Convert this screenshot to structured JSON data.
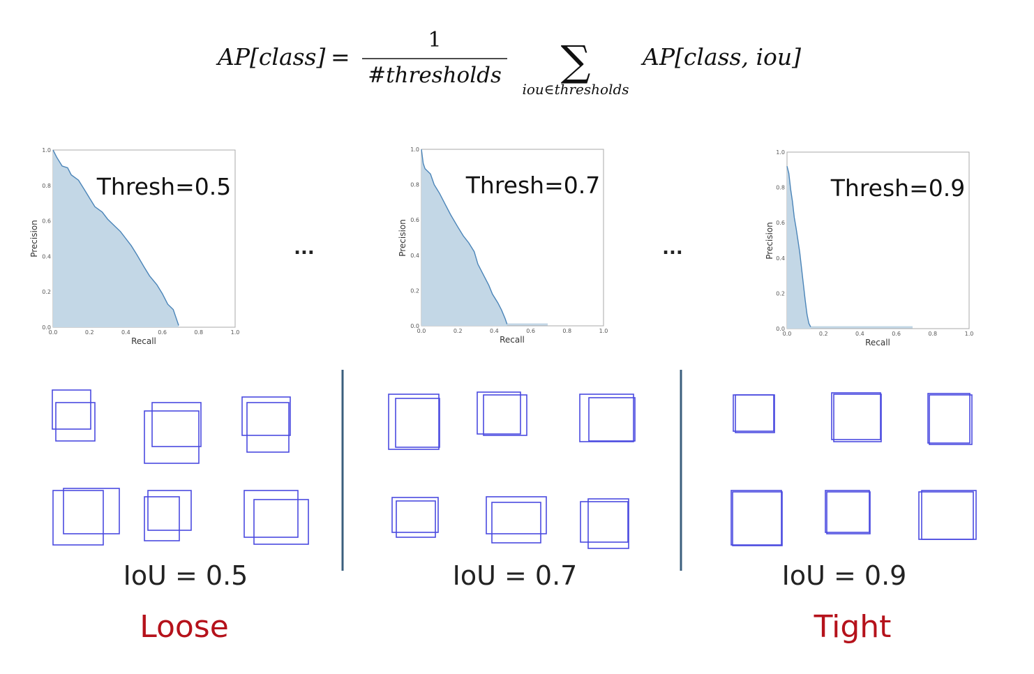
{
  "formula": {
    "lhs": "AP[class]",
    "equals": "=",
    "numerator": "1",
    "denominator": "#thresholds",
    "sum_symbol": "∑",
    "sum_subscript": "iou∈thresholds",
    "rhs": "AP[class, iou]"
  },
  "ellipsis": "...",
  "chart_data": [
    {
      "type": "area",
      "title": "Thresh=0.5",
      "xlabel": "Recall",
      "ylabel": "Precision",
      "xlim": [
        0,
        1
      ],
      "ylim": [
        0,
        1
      ],
      "x_ticks": [
        "0.0",
        "0.2",
        "0.4",
        "0.6",
        "0.8",
        "1.0"
      ],
      "y_ticks": [
        "0.0",
        "0.2",
        "0.4",
        "0.6",
        "0.8",
        "1.0"
      ],
      "x": [
        0.0,
        0.02,
        0.05,
        0.08,
        0.1,
        0.14,
        0.17,
        0.2,
        0.23,
        0.27,
        0.3,
        0.34,
        0.37,
        0.4,
        0.43,
        0.46,
        0.5,
        0.53,
        0.57,
        0.6,
        0.63,
        0.66,
        0.68,
        0.69
      ],
      "y": [
        1.0,
        0.96,
        0.91,
        0.9,
        0.86,
        0.83,
        0.78,
        0.73,
        0.68,
        0.65,
        0.61,
        0.57,
        0.54,
        0.5,
        0.46,
        0.41,
        0.34,
        0.29,
        0.24,
        0.19,
        0.13,
        0.1,
        0.04,
        0.01
      ]
    },
    {
      "type": "area",
      "title": "Thresh=0.7",
      "xlabel": "Recall",
      "ylabel": "Precision",
      "xlim": [
        0,
        1
      ],
      "ylim": [
        0,
        1
      ],
      "x_ticks": [
        "0.0",
        "0.2",
        "0.4",
        "0.6",
        "0.8",
        "1.0"
      ],
      "y_ticks": [
        "0.0",
        "0.2",
        "0.4",
        "0.6",
        "0.8",
        "1.0"
      ],
      "x": [
        0.0,
        0.01,
        0.02,
        0.05,
        0.07,
        0.1,
        0.13,
        0.16,
        0.2,
        0.23,
        0.26,
        0.29,
        0.31,
        0.34,
        0.37,
        0.39,
        0.42,
        0.44,
        0.46,
        0.47
      ],
      "y": [
        1.0,
        0.92,
        0.89,
        0.86,
        0.8,
        0.75,
        0.69,
        0.63,
        0.56,
        0.51,
        0.47,
        0.42,
        0.35,
        0.29,
        0.23,
        0.18,
        0.13,
        0.09,
        0.04,
        0.01
      ]
    },
    {
      "type": "area",
      "title": "Thresh=0.9",
      "xlabel": "Recall",
      "ylabel": "Precision",
      "xlim": [
        0,
        1
      ],
      "ylim": [
        0,
        1
      ],
      "x_ticks": [
        "0.0",
        "0.2",
        "0.4",
        "0.6",
        "0.8",
        "1.0"
      ],
      "y_ticks": [
        "0.0",
        "0.2",
        "0.4",
        "0.6",
        "0.8",
        "1.0"
      ],
      "x": [
        0.0,
        0.01,
        0.02,
        0.03,
        0.04,
        0.05,
        0.06,
        0.07,
        0.08,
        0.09,
        0.1,
        0.11,
        0.12,
        0.13
      ],
      "y": [
        0.92,
        0.88,
        0.79,
        0.72,
        0.63,
        0.57,
        0.5,
        0.43,
        0.34,
        0.25,
        0.16,
        0.08,
        0.03,
        0.01
      ]
    }
  ],
  "groups": [
    {
      "iou_label": "IoU = 0.5",
      "tag": "Loose"
    },
    {
      "iou_label": "IoU = 0.7",
      "tag": ""
    },
    {
      "iou_label": "IoU = 0.9",
      "tag": "Tight"
    }
  ],
  "colors": {
    "box_stroke": "#4a4ae0",
    "area_fill": "#c3d7e6",
    "curve_stroke": "#4a84b8",
    "divider": "#3b5f7e",
    "tag_red": "#b5121b"
  }
}
